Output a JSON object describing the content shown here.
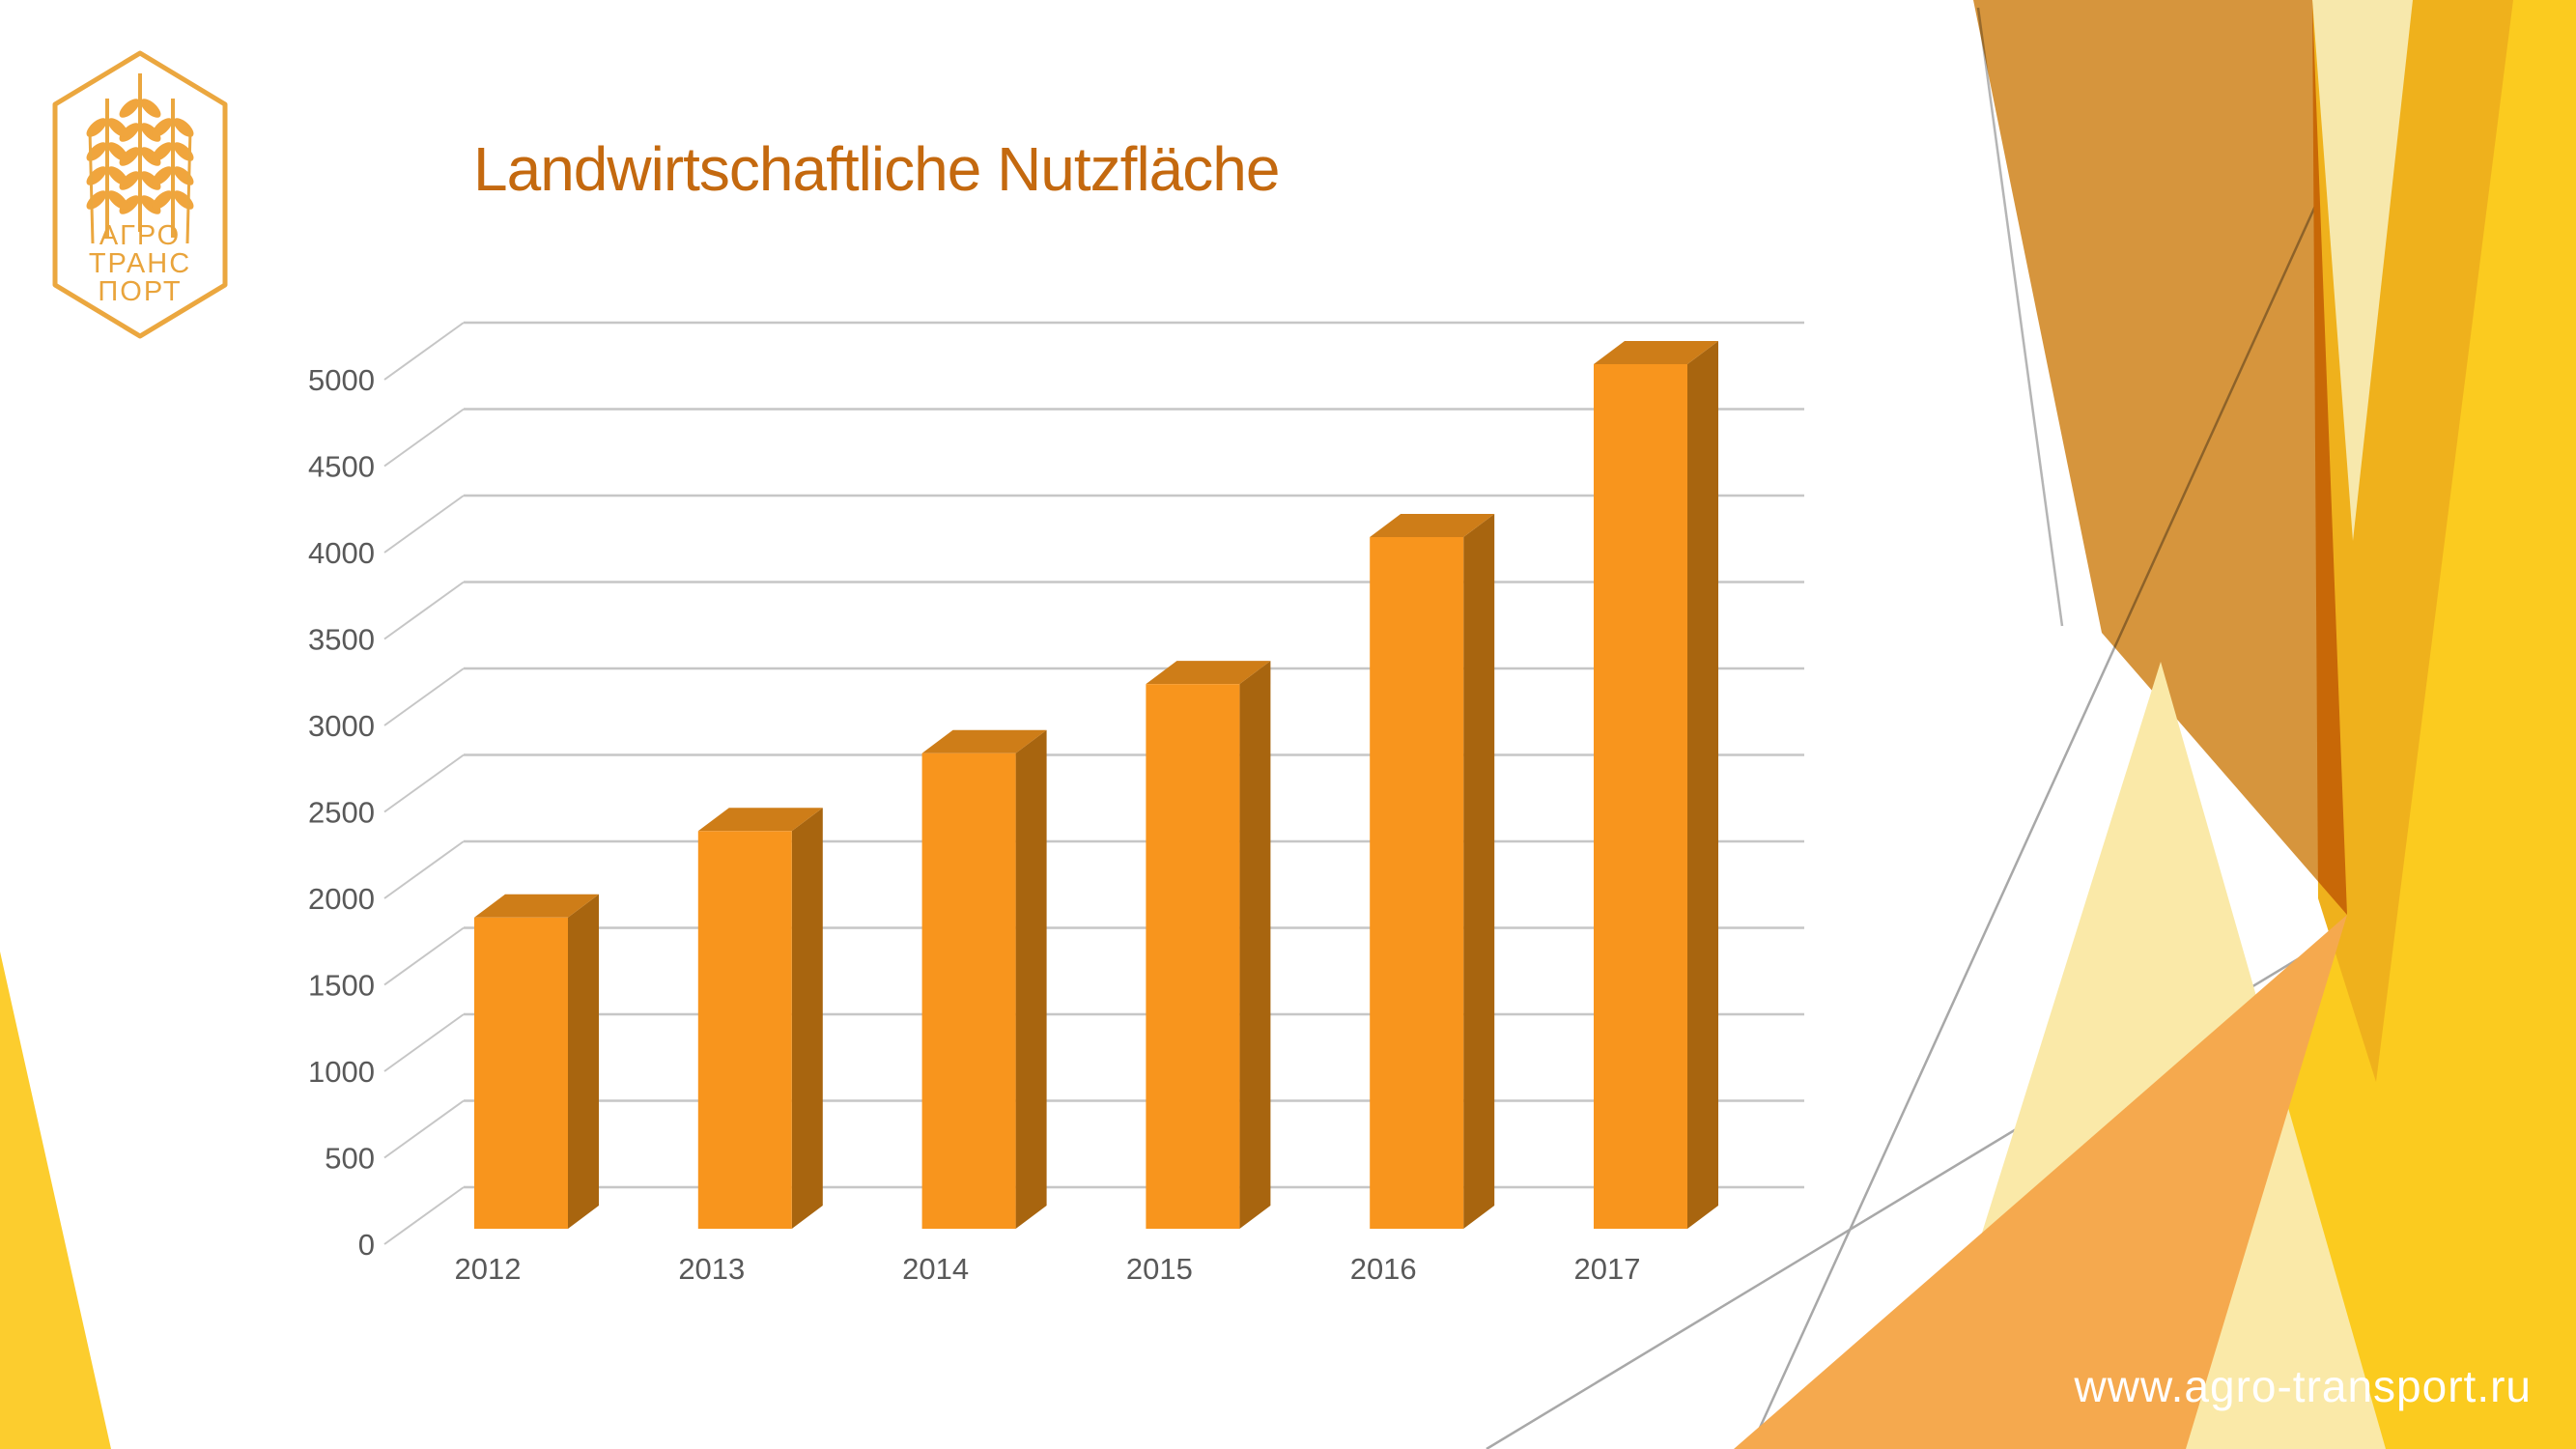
{
  "slide": {
    "title": "Landwirtschaftliche Nutzfläche",
    "footer_url": "www.agro-transport.ru"
  },
  "logo": {
    "line1": "АГРО",
    "line2": "ТРАНС",
    "line3": "ПОРТ",
    "gold": "#EBA73F"
  },
  "chart_data": {
    "type": "bar",
    "style": "3d-column",
    "title": "Landwirtschaftliche Nutzfläche",
    "categories": [
      "2012",
      "2013",
      "2014",
      "2015",
      "2016",
      "2017"
    ],
    "values": [
      1800,
      2300,
      2750,
      3150,
      4000,
      5000
    ],
    "yticks": [
      0,
      500,
      1000,
      1500,
      2000,
      2500,
      3000,
      3500,
      4000,
      4500,
      5000
    ],
    "ylim": [
      0,
      5000
    ],
    "ytick_step": 500,
    "xlabel": "",
    "ylabel": "",
    "grid": true,
    "legend": "none",
    "bar_color": "#F8951D",
    "bar_top_color": "#CE7D18",
    "bar_side_color": "#A8650F",
    "grid_color": "#C6C6C6",
    "axis_text_color": "#595959"
  },
  "colors": {
    "title_text": "#C4690F",
    "footer_text": "#FFFFFF",
    "decor_amber": "#D6953D",
    "decor_golden": "#EFB11C",
    "decor_yellow": "#FBCB1F",
    "decor_orange": "#F5A94E",
    "decor_cream": "#FAE9A8",
    "decor_pale": "#F7E8AC",
    "decor_corner_yellow": "#FCCD2E",
    "decor_line_gray": "#A8A8A8"
  }
}
